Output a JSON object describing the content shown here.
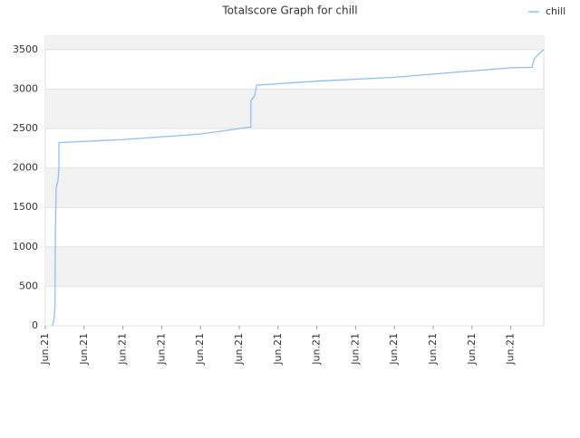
{
  "chart_data": {
    "type": "line",
    "title": "Totalscore Graph for chill",
    "x": [
      0.19,
      0.23,
      0.25,
      0.26,
      0.28,
      0.33,
      0.35,
      0.35,
      0.5,
      2,
      4,
      5.3,
      5.3,
      5.4,
      5.45,
      7,
      9,
      10,
      12,
      12.55,
      12.6,
      12.75,
      12.85
    ],
    "series": [
      {
        "name": "chill",
        "color": "#90c0f0",
        "values": [
          0,
          100,
          250,
          1200,
          1750,
          1850,
          2000,
          2320,
          2325,
          2360,
          2430,
          2520,
          2850,
          2920,
          3050,
          3100,
          3150,
          3190,
          3270,
          3275,
          3380,
          3460,
          3500
        ]
      }
    ],
    "xlim": [
      0,
      12.85
    ],
    "xticks": [
      {
        "value": 0,
        "label": "Jun.21"
      },
      {
        "value": 1,
        "label": "Jun.21"
      },
      {
        "value": 2,
        "label": "Jun.21"
      },
      {
        "value": 3,
        "label": "Jun.21"
      },
      {
        "value": 4,
        "label": "Jun.21"
      },
      {
        "value": 5,
        "label": "Jun.21"
      },
      {
        "value": 6,
        "label": "Jun.21"
      },
      {
        "value": 7,
        "label": "Jun.21"
      },
      {
        "value": 8,
        "label": "Jun.21"
      },
      {
        "value": 9,
        "label": "Jun.21"
      },
      {
        "value": 10,
        "label": "Jun.21"
      },
      {
        "value": 11,
        "label": "Jun.21"
      },
      {
        "value": 12,
        "label": "Jun.21"
      }
    ],
    "ylim": [
      0,
      3670
    ],
    "yticks": [
      0,
      500,
      1000,
      1500,
      2000,
      2500,
      3000,
      3500
    ],
    "grid": "banded",
    "legend": "top-right"
  }
}
